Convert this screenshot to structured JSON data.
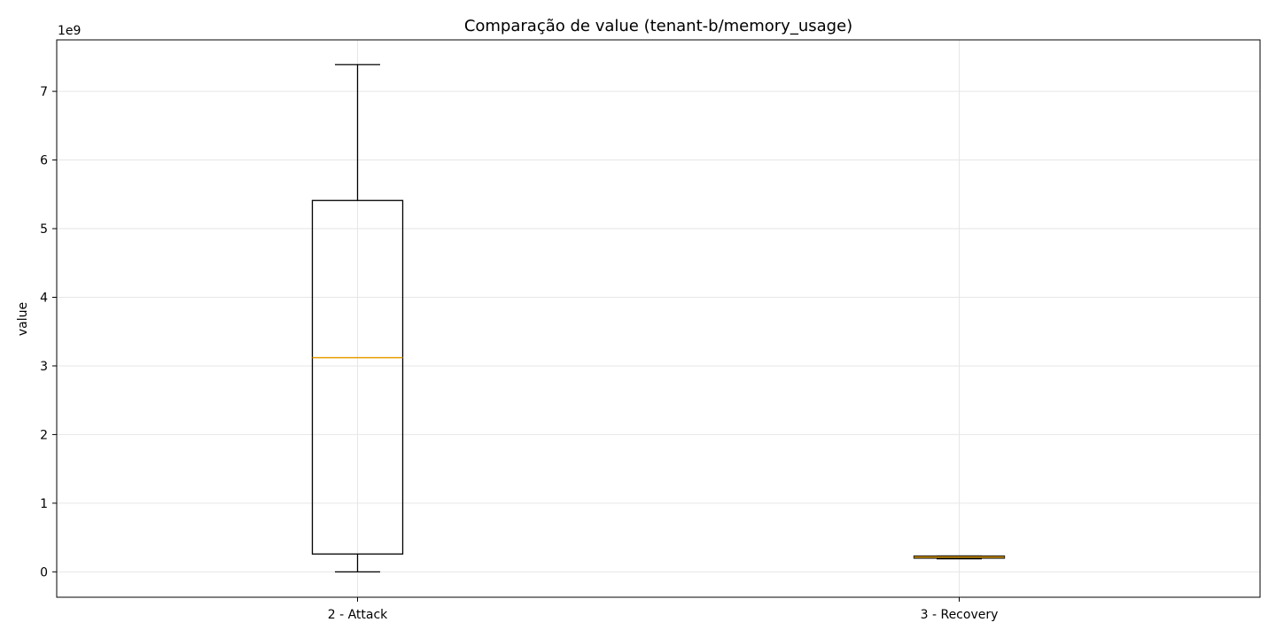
{
  "chart_data": {
    "type": "box",
    "title": "Comparação de value (tenant-b/memory_usage)",
    "xlabel": "",
    "ylabel": "value",
    "y_offset_label": "1e9",
    "y_scale_factor": 1000000000,
    "ylim": [
      -0.37,
      7.75
    ],
    "yticks": [
      0,
      1,
      2,
      3,
      4,
      5,
      6,
      7
    ],
    "grid": true,
    "categories": [
      "2 - Attack",
      "3 - Recovery"
    ],
    "boxes": [
      {
        "label": "2 - Attack",
        "whisker_low": 0.0,
        "q1": 0.26,
        "median": 3.12,
        "q3": 5.41,
        "whisker_high": 7.39
      },
      {
        "label": "3 - Recovery",
        "whisker_low": 0.19,
        "q1": 0.2,
        "median": 0.215,
        "q3": 0.23,
        "whisker_high": 0.23
      }
    ],
    "colors": {
      "box": "#000000",
      "median": "#e69f00",
      "grid": "#e6e6e6"
    }
  }
}
